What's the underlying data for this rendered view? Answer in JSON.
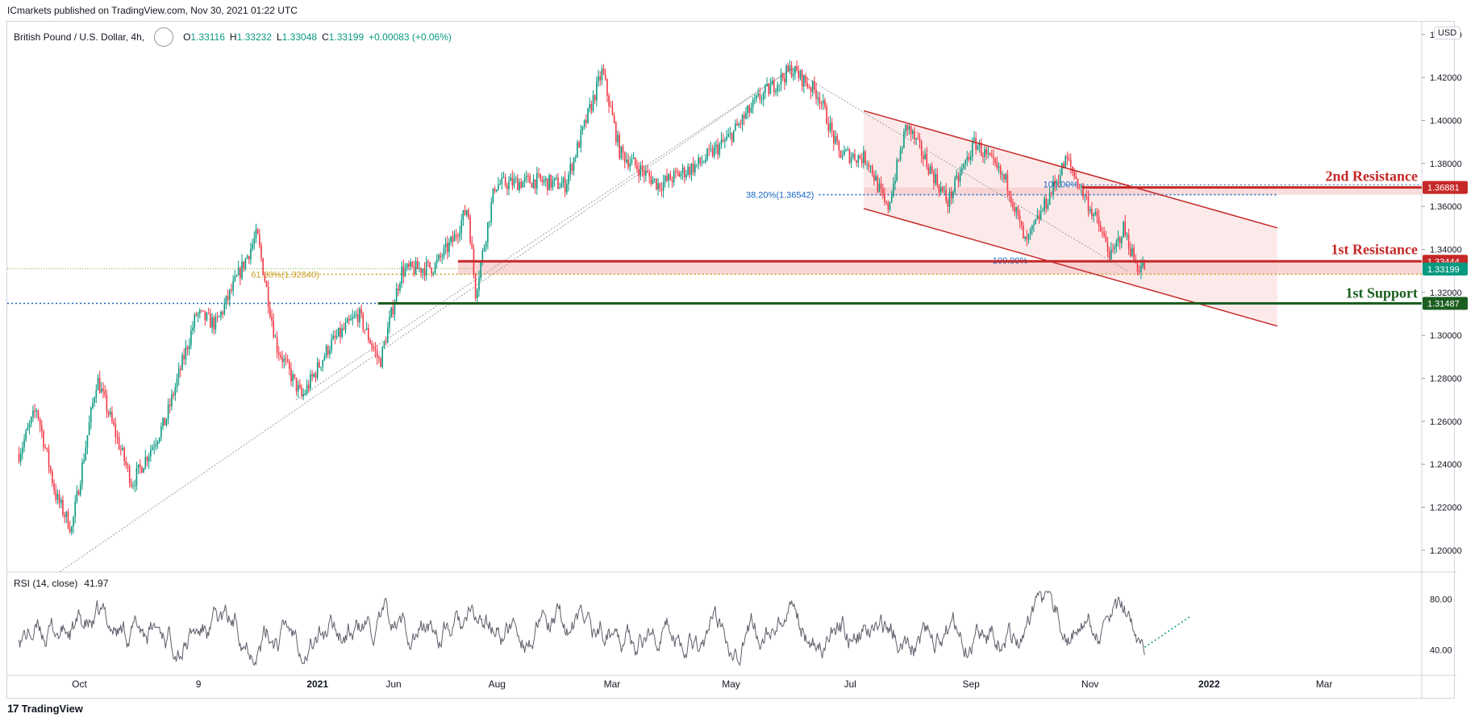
{
  "header": {
    "published": "ICmarkets published on TradingView.com, Nov 30, 2021 01:22 UTC"
  },
  "legend": {
    "symbol": "British Pound / U.S. Dollar, 4h,",
    "open_label": "O",
    "open": "1.33116",
    "high_label": "H",
    "high": "1.33232",
    "low_label": "L",
    "low": "1.33048",
    "close_label": "C",
    "close": "1.33199",
    "change": "+0.00083 (+0.06%)"
  },
  "axis": {
    "currency": "USD"
  },
  "rsi": {
    "label": "RSI (14, close)",
    "value": "41.97",
    "ticks": [
      "80.00",
      "40.00"
    ]
  },
  "footer": {
    "brand": "TradingView",
    "logo": "tradingview-logo-icon"
  },
  "colors": {
    "up": "#089981",
    "down": "#f23645",
    "resistance": "#c62828",
    "support": "#1b5e20",
    "fib": "#1565c0",
    "fib618": "#c9a227",
    "channel": "#fbe3e3"
  },
  "chart_data": {
    "type": "candlestick",
    "title": "British Pound / U.S. Dollar, 4h",
    "y_ticks": [
      "1.44000",
      "1.42000",
      "1.40000",
      "1.38000",
      "1.36000",
      "1.34000",
      "1.32000",
      "1.30000",
      "1.28000",
      "1.26000",
      "1.24000",
      "1.22000",
      "1.20000"
    ],
    "ylim": [
      1.18982,
      1.44591
    ],
    "x_ticks": [
      "Jun",
      "Aug",
      "Oct",
      "9",
      "2021",
      "Mar",
      "May",
      "Jul",
      "Sep",
      "Nov",
      "2022",
      "Mar"
    ],
    "price_path": [
      [
        "2020-05-01",
        1.245
      ],
      [
        "2020-05-10",
        1.266
      ],
      [
        "2020-05-20",
        1.225
      ],
      [
        "2020-05-28",
        1.21
      ],
      [
        "2020-06-10",
        1.28
      ],
      [
        "2020-06-28",
        1.231
      ],
      [
        "2020-07-15",
        1.26
      ],
      [
        "2020-07-31",
        1.31
      ],
      [
        "2020-08-10",
        1.305
      ],
      [
        "2020-08-31",
        1.347
      ],
      [
        "2020-09-10",
        1.295
      ],
      [
        "2020-09-23",
        1.271
      ],
      [
        "2020-10-07",
        1.295
      ],
      [
        "2020-10-22",
        1.31
      ],
      [
        "2020-11-02",
        1.287
      ],
      [
        "2020-11-13",
        1.33
      ],
      [
        "2020-11-30",
        1.332
      ],
      [
        "2020-12-10",
        1.345
      ],
      [
        "2020-12-17",
        1.36
      ],
      [
        "2020-12-21",
        1.32
      ],
      [
        "2020-12-31",
        1.37
      ],
      [
        "2021-01-20",
        1.372
      ],
      [
        "2021-02-05",
        1.37
      ],
      [
        "2021-02-24",
        1.423
      ],
      [
        "2021-03-05",
        1.385
      ],
      [
        "2021-03-25",
        1.37
      ],
      [
        "2021-04-15",
        1.38
      ],
      [
        "2021-04-30",
        1.392
      ],
      [
        "2021-05-15",
        1.41
      ],
      [
        "2021-06-01",
        1.424
      ],
      [
        "2021-06-15",
        1.412
      ],
      [
        "2021-06-25",
        1.385
      ],
      [
        "2021-07-10",
        1.382
      ],
      [
        "2021-07-20",
        1.358
      ],
      [
        "2021-07-30",
        1.398
      ],
      [
        "2021-08-20",
        1.362
      ],
      [
        "2021-09-03",
        1.39
      ],
      [
        "2021-09-20",
        1.37
      ],
      [
        "2021-09-29",
        1.342
      ],
      [
        "2021-10-20",
        1.382
      ],
      [
        "2021-11-05",
        1.352
      ],
      [
        "2021-11-12",
        1.336
      ],
      [
        "2021-11-18",
        1.35
      ],
      [
        "2021-11-25",
        1.332
      ],
      [
        "2021-11-29",
        1.332
      ]
    ],
    "levels": [
      {
        "name": "2nd Resistance",
        "price": 1.36881
      },
      {
        "name": "1st Resistance",
        "price": 1.33444
      },
      {
        "name": "1st Support",
        "price": 1.31487
      }
    ],
    "last_price": 1.33199,
    "price_tags": [
      "1.36881",
      "1.33444",
      "1.33199",
      "1.31487"
    ],
    "fibonacci": [
      {
        "label": "38.20%(1.36542)",
        "price": 1.36542
      },
      {
        "label": "61.80%(1.32840)",
        "price": 1.3284
      },
      {
        "label": "100.00%",
        "price": 1.37
      },
      {
        "label": "100.00%",
        "price": 1.3345
      }
    ],
    "channel": {
      "upper": [
        [
          "2021-07-08",
          1.4045
        ],
        [
          "2022-02-05",
          1.35
        ]
      ],
      "lower": [
        [
          "2021-07-08",
          1.359
        ],
        [
          "2022-02-05",
          1.3043
        ]
      ]
    },
    "trendline": [
      [
        "2020-05-22",
        1.19
      ],
      [
        "2021-06-01",
        1.424
      ]
    ],
    "rsi_ylim": [
      20,
      100
    ],
    "grid": false,
    "legend_position": "top-left"
  }
}
